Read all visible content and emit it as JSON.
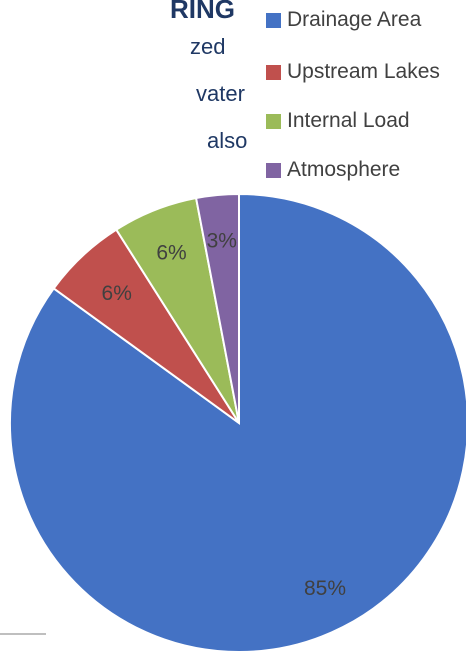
{
  "background_text": {
    "heading": "RING",
    "lines": [
      "zed",
      "vater",
      "also"
    ]
  },
  "chart_data": {
    "type": "pie",
    "title": "",
    "legend_position": "top-right",
    "slices": [
      {
        "label": "Drainage Area",
        "value": 85,
        "display": "85%",
        "color": "#4472c4"
      },
      {
        "label": "Upstream Lakes",
        "value": 6,
        "display": "6%",
        "color": "#c0504d"
      },
      {
        "label": "Internal Load",
        "value": 6,
        "display": "6%",
        "color": "#9bbb59"
      },
      {
        "label": "Atmosphere",
        "value": 3,
        "display": "3%",
        "color": "#8064a2"
      }
    ]
  }
}
